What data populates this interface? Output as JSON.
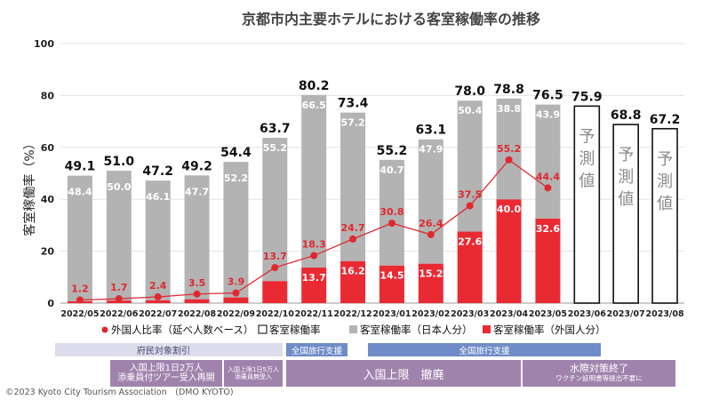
{
  "chart_data": {
    "type": "bar",
    "title": "京都市内主要ホテルにおける客室稼働率の推移",
    "ylabel": "客室稼働率（%）",
    "ylim": [
      0,
      100
    ],
    "yticks": [
      0,
      20,
      40,
      60,
      80,
      100
    ],
    "categories": [
      "2022/05",
      "2022/06",
      "2022/07",
      "2022/08",
      "2022/09",
      "2022/10",
      "2022/11",
      "2022/12",
      "2023/01",
      "2023/02",
      "2023/03",
      "2023/04",
      "2023/05",
      "2023/06",
      "2023/07",
      "2023/08"
    ],
    "totals": [
      49.1,
      51.0,
      47.2,
      49.2,
      54.4,
      63.7,
      80.2,
      73.4,
      55.2,
      63.1,
      78.0,
      78.8,
      76.5,
      75.9,
      68.8,
      67.2
    ],
    "series": [
      {
        "name": "客室稼働率（日本人分）",
        "color": "#b3b3b3",
        "values": [
          48.4,
          50.0,
          46.1,
          47.7,
          52.2,
          55.2,
          66.5,
          57.2,
          40.7,
          47.9,
          50.4,
          38.8,
          43.9,
          null,
          null,
          null
        ],
        "labels": [
          "48.4",
          "50.0",
          "46.1",
          "47.7",
          "52.2",
          "55.2",
          "66.5",
          "57.2",
          "40.7",
          "47.9",
          "50.4",
          "38.8",
          "43.9",
          "",
          "",
          ""
        ]
      },
      {
        "name": "客室稼働率（外国人分）",
        "color": "#ea2a33",
        "values": [
          0.7,
          1.0,
          1.1,
          1.5,
          2.2,
          8.5,
          13.7,
          16.2,
          14.5,
          15.2,
          27.6,
          40.0,
          32.6,
          null,
          null,
          null
        ],
        "labels": [
          "",
          "",
          "",
          "",
          "",
          "",
          "13.7",
          "16.2",
          "14.5",
          "15.2",
          "27.6",
          "40.0",
          "32.6",
          "",
          "",
          ""
        ]
      },
      {
        "name": "外国人比率（延べ人数ベース）",
        "type": "line",
        "color": "#e0282f",
        "values": [
          1.2,
          1.7,
          2.4,
          3.5,
          3.9,
          13.7,
          18.3,
          24.7,
          30.8,
          26.4,
          37.5,
          55.2,
          44.4,
          null,
          null,
          null
        ],
        "labels": [
          "1.2",
          "1.7",
          "2.4",
          "3.5",
          "3.9",
          "13.7",
          "18.3",
          "24.7",
          "30.8",
          "26.4",
          "37.5",
          "55.2",
          "44.4",
          "",
          "",
          ""
        ]
      }
    ],
    "forecast_from_index": 13,
    "forecast_label": "予測値",
    "legend": [
      {
        "label": "外国人比率（延べ人数ベース）",
        "swatch": "line-dot",
        "color": "#e0282f"
      },
      {
        "label": "客室稼働率",
        "swatch": "square-outline",
        "color": "#000000"
      },
      {
        "label": "客室稼働率（日本人分）",
        "swatch": "square",
        "color": "#b3b3b3"
      },
      {
        "label": "客室稼働率（外国人分）",
        "swatch": "square",
        "color": "#ea2a33"
      }
    ],
    "legend_position": "bottom",
    "grid": true
  },
  "policy_bands": {
    "fuminn": "府民対象割引",
    "zenkoku1": "全国旅行支援",
    "zenkoku2": "全国旅行支援",
    "entry_line1": "入国上限1日2万人",
    "entry_line2": "添乗員付ツアー受入再開",
    "entry5_line1": "入国上限1日5万人",
    "entry5_line2": "添乗員無受入",
    "entry_removed": "入国上限　撤廃",
    "border_end": "水際対策終了",
    "border_end_sub": "ワクチン証明書等提出不要に"
  },
  "footer": {
    "copyright": "©2023 Kyoto City Tourism Association　(DMO KYOTO)"
  }
}
